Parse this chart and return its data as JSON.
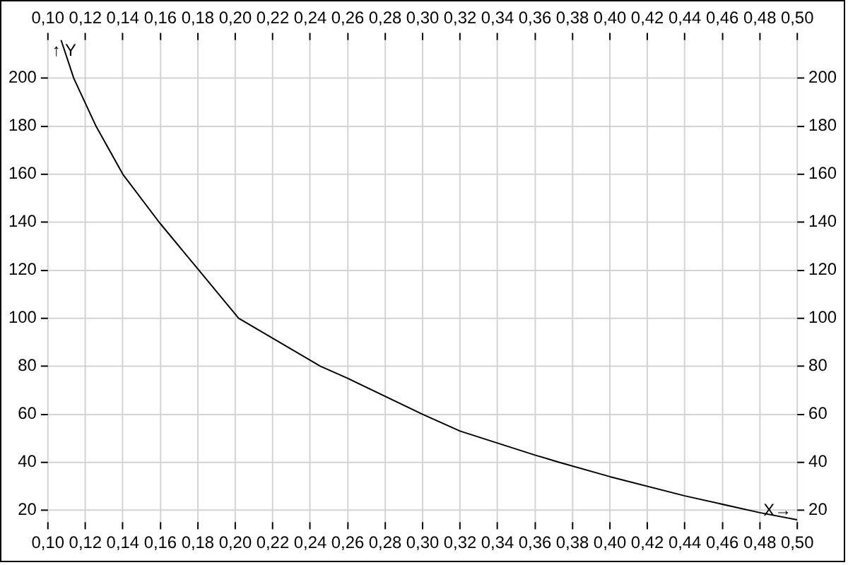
{
  "chart_data": {
    "type": "line",
    "xlabel": "X→",
    "ylabel": "↑ Y",
    "x": [
      0.107,
      0.1138,
      0.1257,
      0.14,
      0.1594,
      0.1806,
      0.2018,
      0.2455,
      0.26,
      0.3,
      0.32,
      0.34,
      0.36,
      0.3728,
      0.4,
      0.44,
      0.48,
      0.5
    ],
    "series": [
      {
        "color": "#000000",
        "values": [
          216,
          200,
          180,
          160,
          140,
          120,
          100,
          80,
          75,
          60,
          53,
          48,
          43,
          40,
          34,
          26,
          19,
          16
        ]
      }
    ],
    "xlim": [
      0.1,
      0.5
    ],
    "xticks": [
      {
        "value": 0.1,
        "label": "0,10"
      },
      {
        "value": 0.12,
        "label": "0,12"
      },
      {
        "value": 0.14,
        "label": "0,14"
      },
      {
        "value": 0.16,
        "label": "0,16"
      },
      {
        "value": 0.18,
        "label": "0,18"
      },
      {
        "value": 0.2,
        "label": "0,20"
      },
      {
        "value": 0.22,
        "label": "0,22"
      },
      {
        "value": 0.24,
        "label": "0,24"
      },
      {
        "value": 0.26,
        "label": "0,26"
      },
      {
        "value": 0.28,
        "label": "0,28"
      },
      {
        "value": 0.3,
        "label": "0,30"
      },
      {
        "value": 0.32,
        "label": "0,32"
      },
      {
        "value": 0.34,
        "label": "0,34"
      },
      {
        "value": 0.36,
        "label": "0,36"
      },
      {
        "value": 0.38,
        "label": "0,38"
      },
      {
        "value": 0.4,
        "label": "0,40"
      },
      {
        "value": 0.42,
        "label": "0,42"
      },
      {
        "value": 0.44,
        "label": "0,44"
      },
      {
        "value": 0.46,
        "label": "0,46"
      },
      {
        "value": 0.48,
        "label": "0,48"
      },
      {
        "value": 0.5,
        "label": "0,50"
      }
    ],
    "x2lim": [
      0.1,
      0.5
    ],
    "x2ticks": [
      {
        "value": 0.1,
        "label": "0,10"
      },
      {
        "value": 0.12,
        "label": "0,12"
      },
      {
        "value": 0.14,
        "label": "0,14"
      },
      {
        "value": 0.16,
        "label": "0,16"
      },
      {
        "value": 0.18,
        "label": "0,18"
      },
      {
        "value": 0.2,
        "label": "0,20"
      },
      {
        "value": 0.22,
        "label": "0,22"
      },
      {
        "value": 0.24,
        "label": "0,24"
      },
      {
        "value": 0.26,
        "label": "0,26"
      },
      {
        "value": 0.28,
        "label": "0,28"
      },
      {
        "value": 0.3,
        "label": "0,30"
      },
      {
        "value": 0.32,
        "label": "0,32"
      },
      {
        "value": 0.34,
        "label": "0,34"
      },
      {
        "value": 0.36,
        "label": "0,36"
      },
      {
        "value": 0.38,
        "label": "0,38"
      },
      {
        "value": 0.4,
        "label": "0,40"
      },
      {
        "value": 0.42,
        "label": "0,42"
      },
      {
        "value": 0.44,
        "label": "0,44"
      },
      {
        "value": 0.46,
        "label": "0,46"
      },
      {
        "value": 0.48,
        "label": "0,48"
      },
      {
        "value": 0.5,
        "label": "0,50"
      }
    ],
    "ylim": [
      15,
      216
    ],
    "yticks": [
      20,
      40,
      60,
      80,
      100,
      120,
      140,
      160,
      180,
      200
    ],
    "y2lim": [
      15,
      216
    ],
    "y2ticks": [
      20,
      40,
      60,
      80,
      100,
      120,
      140,
      160,
      180,
      200
    ],
    "grid": true,
    "marker": "none",
    "line_style": "solid",
    "legend": false
  }
}
